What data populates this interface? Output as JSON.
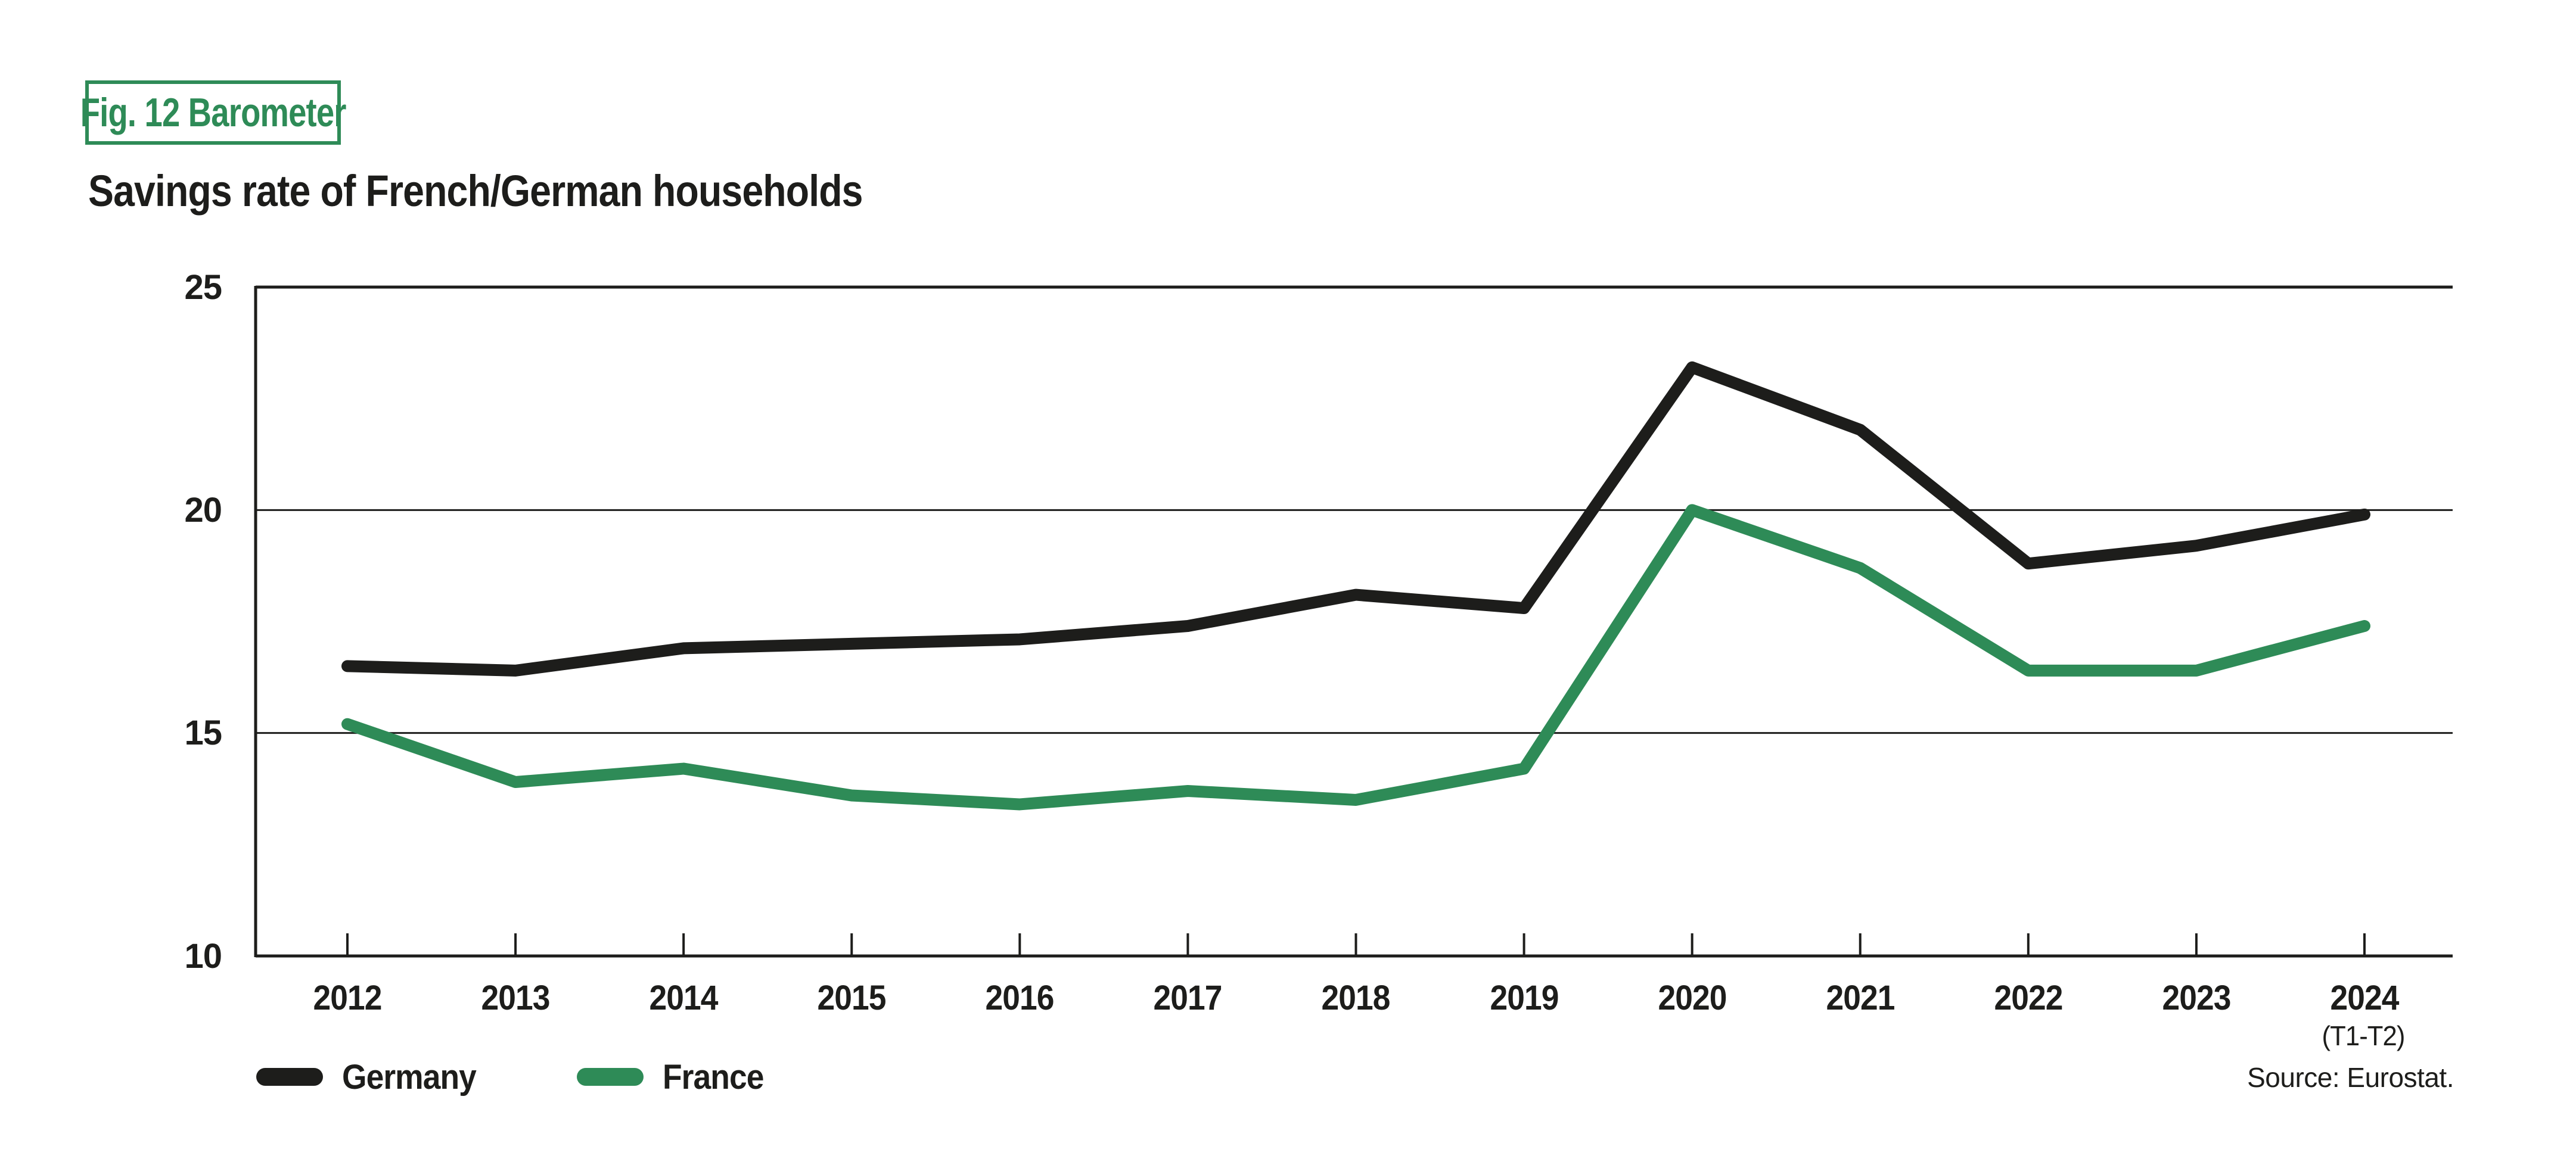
{
  "figure_label": "Fig. 12 Barometer",
  "title": "Savings rate of French/German households",
  "source": "Source: Eurostat.",
  "x_axis_note": "(T1-T2)",
  "colors": {
    "accent_green": "#2e8b57",
    "line_black": "#1d1d1b",
    "grid": "#1d1d1b",
    "background": "#ffffff"
  },
  "chart_data": {
    "type": "line",
    "title": "Savings rate of French/German households",
    "categories": [
      "2012",
      "2013",
      "2014",
      "2015",
      "2016",
      "2017",
      "2018",
      "2019",
      "2020",
      "2021",
      "2022",
      "2023",
      "2024"
    ],
    "series": [
      {
        "name": "Germany",
        "color": "#1d1d1b",
        "values": [
          16.5,
          16.4,
          16.9,
          17.0,
          17.1,
          17.4,
          18.1,
          17.8,
          23.2,
          21.8,
          18.8,
          19.2,
          19.9
        ]
      },
      {
        "name": "France",
        "color": "#2e8b57",
        "values": [
          15.2,
          13.9,
          14.2,
          13.6,
          13.4,
          13.7,
          13.5,
          14.2,
          20.0,
          18.7,
          16.4,
          16.4,
          17.4
        ]
      }
    ],
    "xlabel": "",
    "ylabel": "",
    "ylim": [
      10,
      25
    ],
    "yticks": [
      25,
      20,
      15,
      10
    ],
    "grid": "horizontal",
    "legend_position": "bottom-left",
    "last_category_note": "(T1-T2)"
  }
}
